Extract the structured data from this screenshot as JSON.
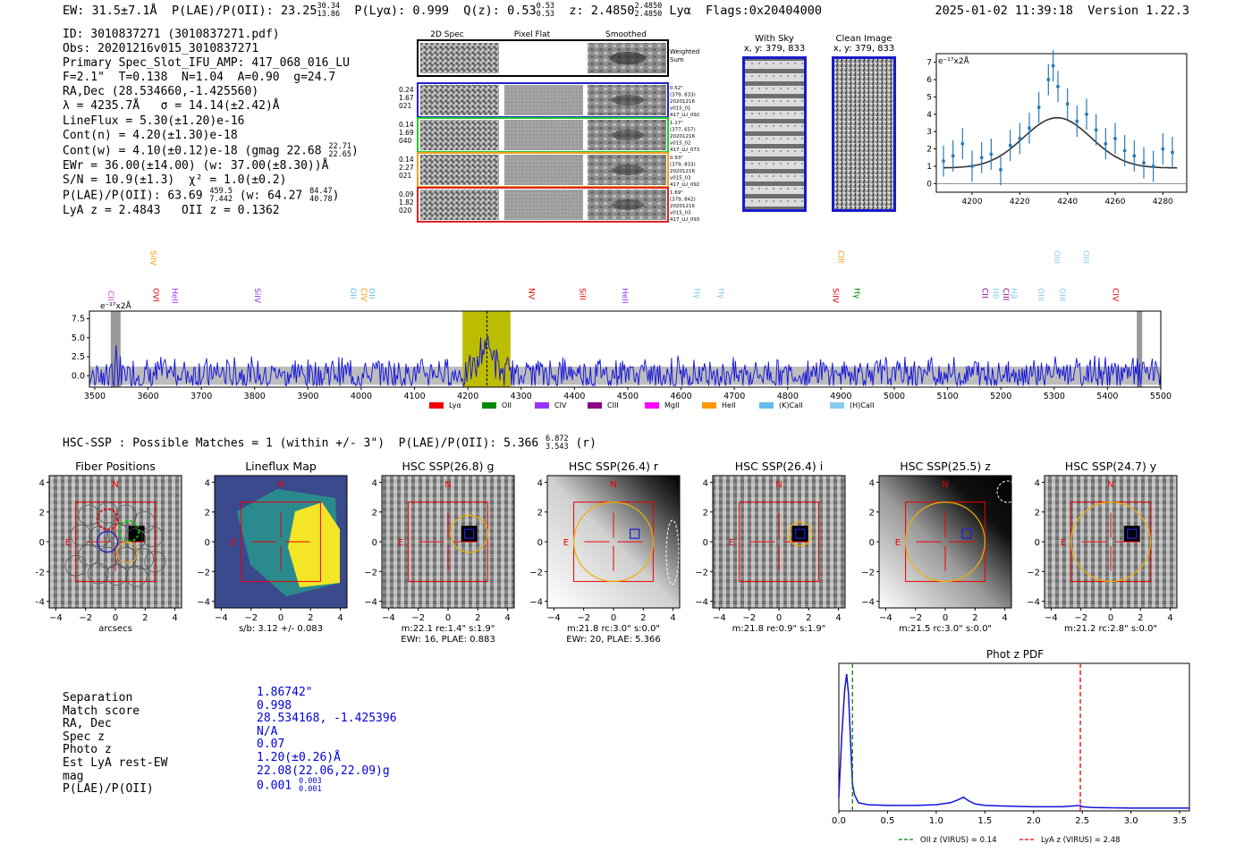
{
  "header": {
    "ew": "EW: 31.5±7.1Å",
    "plae_label": "P(LAE)/P(OII): 23.25",
    "plae_hi": "30.34",
    "plae_lo": "13.86",
    "plya": "P(Lyα): 0.999",
    "qz_label": "Q(z): 0.53",
    "qz_hi": "0.53",
    "qz_lo": "0.53",
    "z_label": "z: 2.4850",
    "z_hi": "2.4850",
    "z_lo": "2.4850",
    "line": "Lyα",
    "flags": "Flags:0x20404000",
    "timestamp": "2025-01-02 11:39:18",
    "version": "Version 1.22.3"
  },
  "info": {
    "id": "ID: 3010837271 (3010837271.pdf)",
    "obs": "Obs: 20201216v015_3010837271",
    "primary": "Primary Spec_Slot_IFU_AMP: 417_068_016_LU",
    "fit": "F=2.1\"  T=0.138  N=1.04  A=0.90  g=24.7",
    "radec": "RA,Dec (28.534660,-1.425560)",
    "lambda": "λ = 4235.7Å   σ = 14.14(±2.42)Å",
    "lineflux": "LineFlux = 5.30(±1.20)e-16",
    "contn": "Cont(n) = 4.20(±1.30)e-18",
    "contw": "Cont(w) = 4.10(±0.12)e-18 (gmag 22.68",
    "contw_hi": "22.71",
    "contw_lo": "22.65",
    "ewr": "EWr = 36.00(±14.00) (w: 37.00(±8.30))Å",
    "sn": "S/N = 10.9(±1.3)  χ² = 1.0(±0.2)",
    "plae": "P(LAE)/P(OII): 63.69",
    "plae_hi": "459.5",
    "plae_lo": "7.442",
    "plae_w": "(w: 64.27",
    "plae_w_hi": "84.47",
    "plae_w_lo": "40.78",
    "lyaz": "LyA z = 2.4843   OII z = 0.1362"
  },
  "cutouts": {
    "col_titles": [
      "2D Spec",
      "Pixel Flat",
      "Smoothed"
    ],
    "weighted": [
      "Weighted",
      "Sum"
    ],
    "rows": [
      {
        "left": [
          "0.24",
          "1.67",
          "021"
        ],
        "right": [
          "0.52\"",
          "(379, 833)",
          "20201216",
          "v015_01",
          "417_LU_092"
        ],
        "color": "#2222cc"
      },
      {
        "left": [
          "0.14",
          "1.69",
          "040"
        ],
        "right": [
          "1.17\"",
          "(377, 657)",
          "20201216",
          "v015_02",
          "417_LU_073"
        ],
        "color": "#22cc22"
      },
      {
        "left": [
          "0.14",
          "2.27",
          "021"
        ],
        "right": [
          "0.93\"",
          "(379, 833)",
          "20201216",
          "v015_03",
          "417_LU_092"
        ],
        "color": "#f0a020"
      },
      {
        "left": [
          "0.09",
          "1.82",
          "020"
        ],
        "right": [
          "1.69\"",
          "(379, 842)",
          "20201216",
          "v015_03",
          "417_LU_093"
        ],
        "color": "#dd2222"
      }
    ],
    "with_sky": {
      "title": "With Sky",
      "coords": "x, y: 379, 833"
    },
    "clean": {
      "title": "Clean Image",
      "coords": "x, y: 379, 833"
    }
  },
  "zoom_chart": {
    "ylabel": "e⁻¹⁷x2Å",
    "xticks": [
      "4200",
      "4220",
      "4240",
      "4260",
      "4280"
    ],
    "yticks": [
      "0",
      "1",
      "2",
      "3",
      "4",
      "5",
      "6",
      "7"
    ]
  },
  "chart_data": [
    {
      "type": "scatter",
      "title": "Emission line zoom",
      "xlabel": "Wavelength (Å)",
      "ylabel": "e⁻¹⁷x2Å",
      "xlim": [
        4185,
        4290
      ],
      "ylim": [
        -0.5,
        7.5
      ],
      "x": [
        4188,
        4192,
        4196,
        4200,
        4204,
        4208,
        4212,
        4216,
        4220,
        4224,
        4228,
        4232,
        4234,
        4236,
        4240,
        4244,
        4248,
        4252,
        4256,
        4260,
        4264,
        4268,
        4272,
        4276,
        4280,
        4284
      ],
      "y": [
        1.3,
        1.6,
        2.3,
        1.0,
        1.5,
        1.7,
        0.8,
        2.2,
        2.6,
        3.2,
        4.4,
        6.0,
        6.8,
        5.6,
        4.6,
        3.6,
        4.0,
        3.1,
        2.3,
        2.6,
        1.9,
        1.6,
        1.2,
        1.0,
        2.0,
        1.8
      ],
      "fit": {
        "center": 4235.7,
        "sigma": 14.14,
        "amplitude": 2.9,
        "continuum": 0.9
      }
    },
    {
      "type": "line",
      "title": "Full spectrum",
      "ylabel": "e⁻¹⁷x2Å",
      "xlim": [
        3490,
        5500
      ],
      "ylim": [
        -1.5,
        8.5
      ],
      "xticks": [
        "3500",
        "3600",
        "3700",
        "3800",
        "3900",
        "4000",
        "4100",
        "4200",
        "4300",
        "4400",
        "4500",
        "4600",
        "4700",
        "4800",
        "4900",
        "5000",
        "5100",
        "5200",
        "5300",
        "5400",
        "5500"
      ],
      "yticks": [
        "0.0",
        "2.5",
        "5.0",
        "7.5"
      ],
      "highlight": [
        4190,
        4280
      ],
      "marker": 4235.7,
      "legend": [
        {
          "name": "Lyα",
          "color": "#ee0000"
        },
        {
          "name": "OII",
          "color": "#008800"
        },
        {
          "name": "CIV",
          "color": "#9933ff"
        },
        {
          "name": "CIII",
          "color": "#880088"
        },
        {
          "name": "MgII",
          "color": "#ff00ff"
        },
        {
          "name": "HeII",
          "color": "#ff9900"
        },
        {
          "name": "(K)CaII",
          "color": "#66bbee"
        },
        {
          "name": "(H)CaII",
          "color": "#88ccee"
        }
      ],
      "line_markers": [
        {
          "name": "CII",
          "x": 3520,
          "color": "#cc44cc",
          "row": 2
        },
        {
          "name": "SiIV",
          "x": 3600,
          "color": "#ff9900",
          "row": 0
        },
        {
          "name": "OVI",
          "x": 3605,
          "color": "#ee0000",
          "row": 1
        },
        {
          "name": "HeII",
          "x": 3640,
          "color": "#9933ff",
          "row": 1
        },
        {
          "name": "SiIV",
          "x": 3795,
          "color": "#9933ff",
          "row": 1
        },
        {
          "name": "OII",
          "x": 3975,
          "color": "#66bbee",
          "row": 1
        },
        {
          "name": "CIV",
          "x": 3995,
          "color": "#ff9900",
          "row": 1
        },
        {
          "name": "OII",
          "x": 4010,
          "color": "#66bbee",
          "row": 1
        },
        {
          "name": "NV",
          "x": 4310,
          "color": "#ee0000",
          "row": 1
        },
        {
          "name": "SiII",
          "x": 4405,
          "color": "#ee0000",
          "row": 1
        },
        {
          "name": "HeII",
          "x": 4485,
          "color": "#9933ff",
          "row": 1
        },
        {
          "name": "Hγ",
          "x": 4620,
          "color": "#88ccee",
          "row": 1
        },
        {
          "name": "Hγ",
          "x": 4665,
          "color": "#88ccee",
          "row": 1
        },
        {
          "name": "CIII",
          "x": 4890,
          "color": "#ff9900",
          "row": 0
        },
        {
          "name": "SiIV",
          "x": 4880,
          "color": "#ee0000",
          "row": 1
        },
        {
          "name": "Hγ",
          "x": 4920,
          "color": "#008800",
          "row": 1
        },
        {
          "name": "CII",
          "x": 5160,
          "color": "#880088",
          "row": 1
        },
        {
          "name": "Hδ",
          "x": 5180,
          "color": "#88ccee",
          "row": 1
        },
        {
          "name": "CIII",
          "x": 5200,
          "color": "#880088",
          "row": 1
        },
        {
          "name": "Hβ",
          "x": 5215,
          "color": "#88ccee",
          "row": 1
        },
        {
          "name": "OIII",
          "x": 5265,
          "color": "#88ccee",
          "row": 1
        },
        {
          "name": "OIII",
          "x": 5295,
          "color": "#88ccee",
          "row": 0
        },
        {
          "name": "OIII",
          "x": 5305,
          "color": "#88ccee",
          "row": 1
        },
        {
          "name": "OIII",
          "x": 5350,
          "color": "#88ccee",
          "row": 0
        },
        {
          "name": "CIV",
          "x": 5405,
          "color": "#ee0000",
          "row": 1
        }
      ]
    },
    {
      "type": "line",
      "title": "Phot z PDF",
      "xlim": [
        0.0,
        3.6
      ],
      "xticks": [
        "0.0",
        "0.5",
        "1.0",
        "1.5",
        "2.0",
        "2.5",
        "3.0",
        "3.5"
      ],
      "x": [
        0.0,
        0.03,
        0.06,
        0.08,
        0.1,
        0.12,
        0.14,
        0.16,
        0.2,
        0.3,
        0.5,
        0.8,
        1.0,
        1.15,
        1.22,
        1.28,
        1.33,
        1.4,
        1.5,
        1.7,
        2.0,
        2.3,
        2.48,
        2.5,
        2.6,
        3.0,
        3.3,
        3.6
      ],
      "y": [
        0.1,
        0.55,
        0.88,
        1.0,
        0.85,
        0.5,
        0.2,
        0.12,
        0.06,
        0.045,
        0.04,
        0.04,
        0.045,
        0.06,
        0.08,
        0.1,
        0.075,
        0.05,
        0.04,
        0.035,
        0.03,
        0.03,
        0.04,
        0.03,
        0.025,
        0.02,
        0.02,
        0.02
      ],
      "vlines": [
        {
          "x": 0.14,
          "color": "#008800",
          "label": "OII z (VIRUS) = 0.14"
        },
        {
          "x": 2.48,
          "color": "#ee0000",
          "label": "LyA z (VIRUS) = 2.48"
        }
      ]
    }
  ],
  "hsc": {
    "summary": "HSC-SSP : Possible Matches = 1 (within +/- 3\")  P(LAE)/P(OII): 5.366",
    "summary_hi": "6.872",
    "summary_lo": "3.543",
    "summary_band": "(r)",
    "panels": [
      {
        "title": "Fiber Positions",
        "caption1": "arcsecs",
        "caption2": ""
      },
      {
        "title": "Lineflux Map",
        "caption1": "s/b: 3.12 +/- 0.083",
        "caption2": ""
      },
      {
        "title": "HSC SSP(26.8) g",
        "caption1": "m:22.1  re:1.4\"  s:1.9\"",
        "caption2": "EWr: 16, PLAE: 0.883"
      },
      {
        "title": "HSC SSP(26.4) r",
        "caption1": "m:21.8 rc:3.0\"  s:0.0\"",
        "caption2": "EWr: 20, PLAE: 5.366"
      },
      {
        "title": "HSC SSP(26.4) i",
        "caption1": "m:21.8  re:0.9\"  s:1.9\"",
        "caption2": ""
      },
      {
        "title": "HSC SSP(25.5) z",
        "caption1": "m:21.5 rc:3.0\"  s:0.0\"",
        "caption2": ""
      },
      {
        "title": "HSC SSP(24.7) y",
        "caption1": "m:21.2 rc:2.8\"  s:0.0\"",
        "caption2": ""
      }
    ],
    "ticks": [
      "4",
      "2",
      "0",
      "−2",
      "−4"
    ],
    "north": "N",
    "east": "E"
  },
  "match": {
    "labels": [
      "Separation",
      "Match score",
      "RA, Dec",
      "Spec z",
      "Photo z",
      "Est LyA rest-EW",
      "mag",
      "P(LAE)/P(OII)"
    ],
    "values": [
      "1.86742\"",
      "0.998",
      "28.534168, -1.425396",
      "N/A",
      "0.07",
      "1.20(±0.26)Å",
      "22.08(22.06,22.09)g",
      "0.001"
    ],
    "plae_hi": "0.003",
    "plae_lo": "0.001"
  }
}
